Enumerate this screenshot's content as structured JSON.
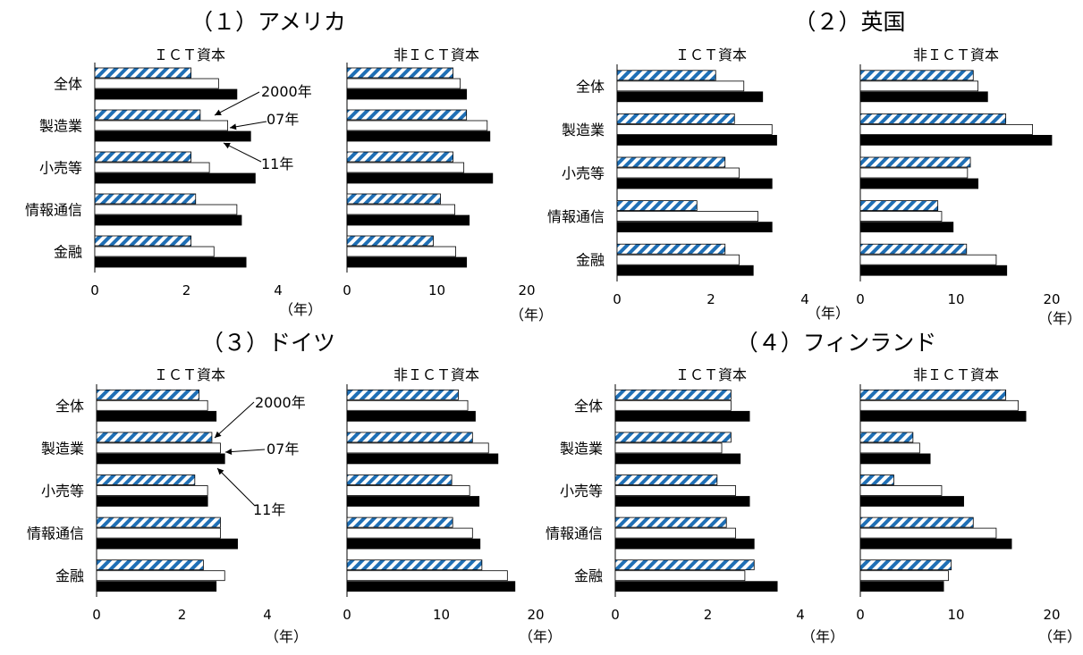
{
  "chart_data": {
    "type": "bar",
    "orientation": "horizontal",
    "categories": [
      "全体",
      "製造業",
      "小売等",
      "情報通信",
      "金融"
    ],
    "unit_label": "（年）",
    "series_labels": [
      "2000年",
      "07年",
      "11年"
    ],
    "series_styles": {
      "2000年": {
        "fill": "hatch",
        "color": "#1f6fb5"
      },
      "07年": {
        "fill": "#ffffff",
        "stroke": "#000000"
      },
      "11年": {
        "fill": "#000000"
      }
    },
    "panel_titles": {
      "ict": "ＩＣＴ資本",
      "nonict": "非ＩＣＴ資本"
    },
    "countries": [
      {
        "title": "（１）アメリカ",
        "ict": {
          "xlim": [
            0,
            4
          ],
          "ticks": [
            0,
            2,
            4
          ],
          "series": [
            {
              "name": "2000年",
              "values": [
                2.1,
                2.3,
                2.1,
                2.2,
                2.1
              ]
            },
            {
              "name": "07年",
              "values": [
                2.7,
                2.9,
                2.5,
                3.1,
                2.6
              ]
            },
            {
              "name": "11年",
              "values": [
                3.1,
                3.4,
                3.5,
                3.2,
                3.3
              ]
            }
          ]
        },
        "nonict": {
          "xlim": [
            0,
            20
          ],
          "ticks": [
            0,
            10,
            20
          ],
          "series": [
            {
              "name": "2000年",
              "values": [
                11.8,
                13.3,
                11.8,
                10.4,
                9.6
              ]
            },
            {
              "name": "07年",
              "values": [
                12.6,
                15.6,
                13.0,
                12.0,
                12.1
              ]
            },
            {
              "name": "11年",
              "values": [
                13.3,
                15.9,
                16.2,
                13.6,
                13.3
              ]
            }
          ]
        }
      },
      {
        "title": "（２）英国",
        "ict": {
          "xlim": [
            0,
            4
          ],
          "ticks": [
            0,
            2,
            4
          ],
          "series": [
            {
              "name": "2000年",
              "values": [
                2.1,
                2.5,
                2.3,
                1.7,
                2.3
              ]
            },
            {
              "name": "07年",
              "values": [
                2.7,
                3.3,
                2.6,
                3.0,
                2.6
              ]
            },
            {
              "name": "11年",
              "values": [
                3.1,
                3.4,
                3.3,
                3.3,
                2.9
              ]
            }
          ]
        },
        "nonict": {
          "xlim": [
            0,
            20
          ],
          "ticks": [
            0,
            10,
            20
          ],
          "series": [
            {
              "name": "2000年",
              "values": [
                11.8,
                15.2,
                11.5,
                8.1,
                11.1
              ]
            },
            {
              "name": "07年",
              "values": [
                12.3,
                18.0,
                11.2,
                8.5,
                14.2
              ]
            },
            {
              "name": "11年",
              "values": [
                13.3,
                20.0,
                12.3,
                9.7,
                15.3
              ]
            }
          ]
        }
      },
      {
        "title": "（３）ドイツ",
        "ict": {
          "xlim": [
            0,
            4
          ],
          "ticks": [
            0,
            2,
            4
          ],
          "series": [
            {
              "name": "2000年",
              "values": [
                2.4,
                2.7,
                2.3,
                2.9,
                2.5
              ]
            },
            {
              "name": "07年",
              "values": [
                2.6,
                2.9,
                2.6,
                2.9,
                3.0
              ]
            },
            {
              "name": "11年",
              "values": [
                2.8,
                3.0,
                2.6,
                3.3,
                2.8
              ]
            }
          ]
        },
        "nonict": {
          "xlim": [
            0,
            20
          ],
          "ticks": [
            0,
            10,
            20
          ],
          "series": [
            {
              "name": "2000年",
              "values": [
                11.8,
                13.3,
                11.1,
                11.2,
                14.3
              ]
            },
            {
              "name": "07年",
              "values": [
                12.8,
                15.0,
                13.0,
                13.3,
                17.0
              ]
            },
            {
              "name": "11年",
              "values": [
                13.6,
                16.0,
                14.0,
                14.1,
                17.8
              ]
            }
          ]
        }
      },
      {
        "title": "（４）フィンランド",
        "ict": {
          "xlim": [
            0,
            4
          ],
          "ticks": [
            0,
            2,
            4
          ],
          "series": [
            {
              "name": "2000年",
              "values": [
                2.5,
                2.5,
                2.2,
                2.4,
                3.0
              ]
            },
            {
              "name": "07年",
              "values": [
                2.5,
                2.3,
                2.6,
                2.6,
                2.8
              ]
            },
            {
              "name": "11年",
              "values": [
                2.9,
                2.7,
                2.9,
                3.0,
                3.5
              ]
            }
          ]
        },
        "nonict": {
          "xlim": [
            0,
            20
          ],
          "ticks": [
            0,
            10,
            20
          ],
          "series": [
            {
              "name": "2000年",
              "values": [
                15.2,
                5.5,
                3.5,
                11.8,
                9.5
              ]
            },
            {
              "name": "07年",
              "values": [
                16.5,
                6.2,
                8.5,
                14.2,
                9.2
              ]
            },
            {
              "name": "11年",
              "values": [
                17.3,
                7.3,
                10.8,
                15.8,
                8.7
              ]
            }
          ]
        }
      }
    ]
  }
}
